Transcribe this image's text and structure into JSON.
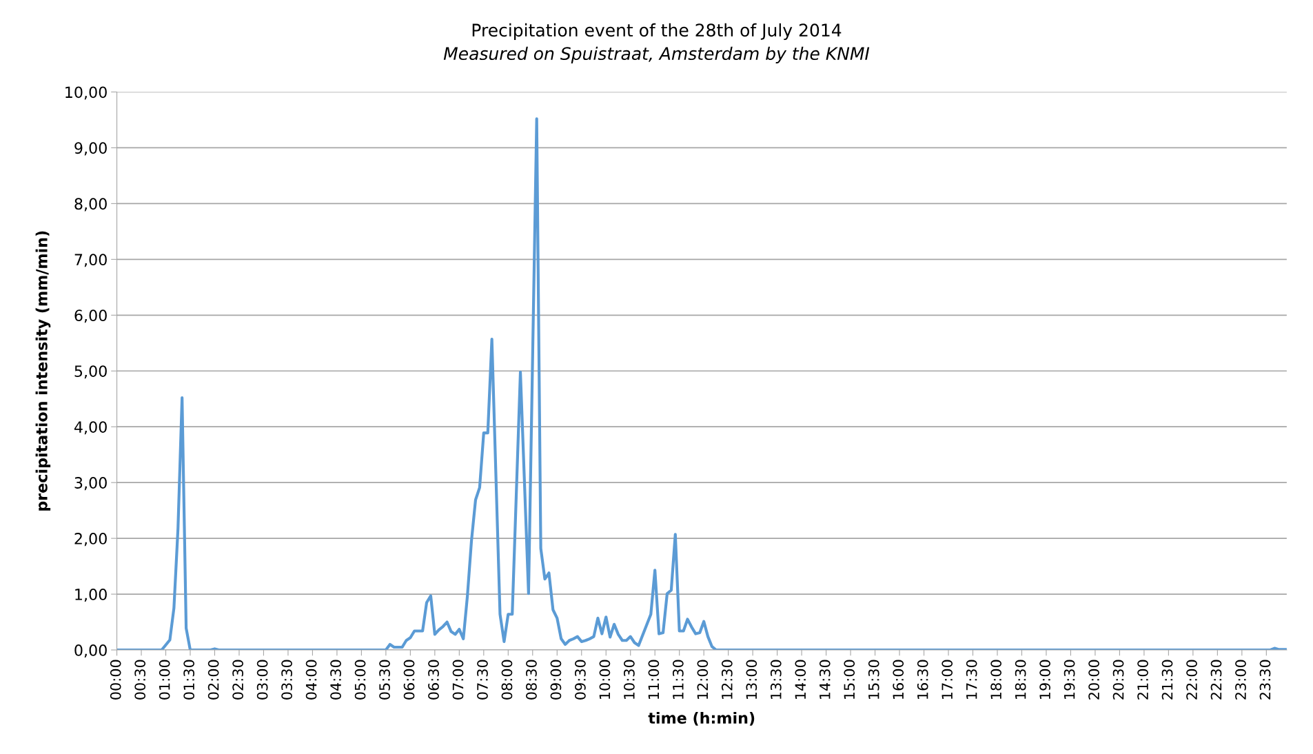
{
  "chart_data": {
    "type": "line",
    "title": "Precipitation event of the 28th of July 2014",
    "subtitle": "Measured on Spuistraat, Amsterdam by the KNMI",
    "xlabel": "time (h:min)",
    "ylabel": "precipitation intensity (mm/min)",
    "series": [
      {
        "color": "#5b9bd5",
        "x": [
          0,
          0.9167,
          1.0833,
          1.1667,
          1.25,
          1.3333,
          1.4167,
          1.5,
          1.9167,
          2,
          2.0833,
          5.5,
          5.5833,
          5.6667,
          5.8333,
          5.9167,
          6,
          6.0833,
          6.25,
          6.3333,
          6.4167,
          6.5,
          6.5833,
          6.6667,
          6.75,
          6.8333,
          6.9167,
          7,
          7.0833,
          7.1667,
          7.25,
          7.3333,
          7.4167,
          7.5,
          7.5833,
          7.6667,
          7.8333,
          7.9167,
          8,
          8.0833,
          8.25,
          8.4167,
          8.5833,
          8.6667,
          8.75,
          8.8333,
          8.9167,
          9,
          9.0833,
          9.1667,
          9.25,
          9.3333,
          9.4167,
          9.5,
          9.5833,
          9.6667,
          9.75,
          9.8333,
          9.9167,
          10,
          10.0833,
          10.1667,
          10.25,
          10.3333,
          10.4167,
          10.5,
          10.5833,
          10.6667,
          10.9167,
          11,
          11.0833,
          11.1667,
          11.25,
          11.3333,
          11.4167,
          11.5,
          11.5833,
          11.6667,
          11.75,
          11.8333,
          11.9167,
          12,
          12.0833,
          12.1667,
          12.25,
          23.5833,
          23.6667,
          23.75,
          23.9167
        ],
        "values": [
          0,
          0,
          0.18,
          0.75,
          2.18,
          4.52,
          0.39,
          0,
          0,
          0.02,
          0,
          0,
          0.1,
          0.05,
          0.05,
          0.17,
          0.22,
          0.34,
          0.34,
          0.85,
          0.97,
          0.28,
          0.36,
          0.42,
          0.5,
          0.33,
          0.28,
          0.37,
          0.2,
          0.97,
          1.96,
          2.69,
          2.91,
          3.89,
          3.89,
          5.57,
          0.64,
          0.15,
          0.64,
          0.64,
          4.98,
          1.01,
          9.52,
          1.82,
          1.27,
          1.38,
          0.72,
          0.57,
          0.2,
          0.1,
          0.17,
          0.2,
          0.24,
          0.15,
          0.17,
          0.2,
          0.24,
          0.57,
          0.29,
          0.59,
          0.23,
          0.46,
          0.28,
          0.17,
          0.17,
          0.24,
          0.13,
          0.08,
          0.64,
          1.43,
          0.29,
          0.31,
          1.01,
          1.07,
          2.07,
          0.34,
          0.34,
          0.55,
          0.41,
          0.29,
          0.31,
          0.51,
          0.24,
          0.06,
          0,
          0,
          0.03,
          0.01,
          0.01
        ]
      }
    ],
    "xlim": [
      0,
      23.9167
    ],
    "xticks": [
      {
        "value": 0,
        "label": "00:00"
      },
      {
        "value": 0.5,
        "label": "00:30"
      },
      {
        "value": 1,
        "label": "01:00"
      },
      {
        "value": 1.5,
        "label": "01:30"
      },
      {
        "value": 2,
        "label": "02:00"
      },
      {
        "value": 2.5,
        "label": "02:30"
      },
      {
        "value": 3,
        "label": "03:00"
      },
      {
        "value": 3.5,
        "label": "03:30"
      },
      {
        "value": 4,
        "label": "04:00"
      },
      {
        "value": 4.5,
        "label": "04:30"
      },
      {
        "value": 5,
        "label": "05:00"
      },
      {
        "value": 5.5,
        "label": "05:30"
      },
      {
        "value": 6,
        "label": "06:00"
      },
      {
        "value": 6.5,
        "label": "06:30"
      },
      {
        "value": 7,
        "label": "07:00"
      },
      {
        "value": 7.5,
        "label": "07:30"
      },
      {
        "value": 8,
        "label": "08:00"
      },
      {
        "value": 8.5,
        "label": "08:30"
      },
      {
        "value": 9,
        "label": "09:00"
      },
      {
        "value": 9.5,
        "label": "09:30"
      },
      {
        "value": 10,
        "label": "10:00"
      },
      {
        "value": 10.5,
        "label": "10:30"
      },
      {
        "value": 11,
        "label": "11:00"
      },
      {
        "value": 11.5,
        "label": "11:30"
      },
      {
        "value": 12,
        "label": "12:00"
      },
      {
        "value": 12.5,
        "label": "12:30"
      },
      {
        "value": 13,
        "label": "13:00"
      },
      {
        "value": 13.5,
        "label": "13:30"
      },
      {
        "value": 14,
        "label": "14:00"
      },
      {
        "value": 14.5,
        "label": "14:30"
      },
      {
        "value": 15,
        "label": "15:00"
      },
      {
        "value": 15.5,
        "label": "15:30"
      },
      {
        "value": 16,
        "label": "16:00"
      },
      {
        "value": 16.5,
        "label": "16:30"
      },
      {
        "value": 17,
        "label": "17:00"
      },
      {
        "value": 17.5,
        "label": "17:30"
      },
      {
        "value": 18,
        "label": "18:00"
      },
      {
        "value": 18.5,
        "label": "18:30"
      },
      {
        "value": 19,
        "label": "19:00"
      },
      {
        "value": 19.5,
        "label": "19:30"
      },
      {
        "value": 20,
        "label": "20:00"
      },
      {
        "value": 20.5,
        "label": "20:30"
      },
      {
        "value": 21,
        "label": "21:00"
      },
      {
        "value": 21.5,
        "label": "21:30"
      },
      {
        "value": 22,
        "label": "22:00"
      },
      {
        "value": 22.5,
        "label": "22:30"
      },
      {
        "value": 23,
        "label": "23:00"
      },
      {
        "value": 23.5,
        "label": "23:30"
      }
    ],
    "ylim": [
      0,
      10
    ],
    "yticks": [
      {
        "value": 0,
        "label": "0,00"
      },
      {
        "value": 1,
        "label": "1,00"
      },
      {
        "value": 2,
        "label": "2,00"
      },
      {
        "value": 3,
        "label": "3,00"
      },
      {
        "value": 4,
        "label": "4,00"
      },
      {
        "value": 5,
        "label": "5,00"
      },
      {
        "value": 6,
        "label": "6,00"
      },
      {
        "value": 7,
        "label": "7,00"
      },
      {
        "value": 8,
        "label": "8,00"
      },
      {
        "value": 9,
        "label": "9,00"
      },
      {
        "value": 10,
        "label": "10,00"
      }
    ],
    "grid": "y",
    "legend": false,
    "marker": "none",
    "line_style": "solid"
  }
}
